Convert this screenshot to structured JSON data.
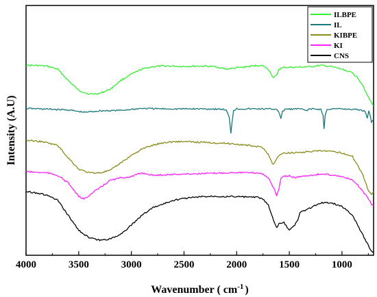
{
  "chart_data": {
    "type": "line",
    "title": "",
    "xlabel": "Wavenumber ( cm",
    "xlabel_sup": "-1",
    "xlabel_tail": ")",
    "ylabel": "Intensity (A.U)",
    "xlim": [
      4000,
      700
    ],
    "ylim": [
      0,
      1
    ],
    "x_reversed": true,
    "y_ticks_shown": false,
    "grid": false,
    "legend_position": "top-right",
    "x_ticks": [
      {
        "value": 4000,
        "label": "4000"
      },
      {
        "value": 3500,
        "label": "3500"
      },
      {
        "value": 3000,
        "label": "3000"
      },
      {
        "value": 2500,
        "label": "2500"
      },
      {
        "value": 2000,
        "label": "2000"
      },
      {
        "value": 1500,
        "label": "1500"
      },
      {
        "value": 1000,
        "label": "1000"
      }
    ],
    "series": [
      {
        "name": "ILBPE",
        "color": "#33ee33",
        "points": [
          [
            4000,
            0.76
          ],
          [
            3900,
            0.76
          ],
          [
            3800,
            0.757
          ],
          [
            3700,
            0.745
          ],
          [
            3600,
            0.7
          ],
          [
            3500,
            0.66
          ],
          [
            3400,
            0.645
          ],
          [
            3300,
            0.648
          ],
          [
            3200,
            0.665
          ],
          [
            3100,
            0.7
          ],
          [
            3000,
            0.725
          ],
          [
            2900,
            0.745
          ],
          [
            2800,
            0.755
          ],
          [
            2700,
            0.758
          ],
          [
            2600,
            0.757
          ],
          [
            2500,
            0.756
          ],
          [
            2400,
            0.757
          ],
          [
            2300,
            0.757
          ],
          [
            2200,
            0.755
          ],
          [
            2100,
            0.745
          ],
          [
            2000,
            0.75
          ],
          [
            1900,
            0.755
          ],
          [
            1800,
            0.76
          ],
          [
            1750,
            0.758
          ],
          [
            1700,
            0.745
          ],
          [
            1650,
            0.71
          ],
          [
            1620,
            0.72
          ],
          [
            1600,
            0.745
          ],
          [
            1550,
            0.752
          ],
          [
            1500,
            0.752
          ],
          [
            1400,
            0.753
          ],
          [
            1300,
            0.755
          ],
          [
            1200,
            0.76
          ],
          [
            1100,
            0.755
          ],
          [
            1000,
            0.745
          ],
          [
            900,
            0.73
          ],
          [
            850,
            0.71
          ],
          [
            800,
            0.68
          ],
          [
            760,
            0.64
          ],
          [
            720,
            0.61
          ],
          [
            700,
            0.6
          ]
        ]
      },
      {
        "name": "IL",
        "color": "#17777a",
        "points": [
          [
            4000,
            0.588
          ],
          [
            3800,
            0.585
          ],
          [
            3600,
            0.582
          ],
          [
            3450,
            0.572
          ],
          [
            3300,
            0.578
          ],
          [
            3100,
            0.58
          ],
          [
            2900,
            0.588
          ],
          [
            2700,
            0.586
          ],
          [
            2500,
            0.586
          ],
          [
            2300,
            0.586
          ],
          [
            2150,
            0.585
          ],
          [
            2100,
            0.582
          ],
          [
            2070,
            0.55
          ],
          [
            2055,
            0.49
          ],
          [
            2045,
            0.53
          ],
          [
            2030,
            0.58
          ],
          [
            2000,
            0.586
          ],
          [
            1800,
            0.586
          ],
          [
            1620,
            0.585
          ],
          [
            1600,
            0.575
          ],
          [
            1580,
            0.545
          ],
          [
            1565,
            0.575
          ],
          [
            1540,
            0.585
          ],
          [
            1500,
            0.585
          ],
          [
            1400,
            0.586
          ],
          [
            1340,
            0.58
          ],
          [
            1300,
            0.586
          ],
          [
            1200,
            0.584
          ],
          [
            1180,
            0.56
          ],
          [
            1170,
            0.505
          ],
          [
            1160,
            0.56
          ],
          [
            1140,
            0.585
          ],
          [
            1000,
            0.586
          ],
          [
            850,
            0.583
          ],
          [
            780,
            0.577
          ],
          [
            760,
            0.55
          ],
          [
            745,
            0.58
          ],
          [
            720,
            0.535
          ],
          [
            700,
            0.545
          ]
        ]
      },
      {
        "name": "KIBPE",
        "color": "#8a8a18",
        "points": [
          [
            4000,
            0.46
          ],
          [
            3850,
            0.455
          ],
          [
            3700,
            0.44
          ],
          [
            3600,
            0.39
          ],
          [
            3500,
            0.345
          ],
          [
            3400,
            0.33
          ],
          [
            3300,
            0.33
          ],
          [
            3200,
            0.34
          ],
          [
            3100,
            0.37
          ],
          [
            3000,
            0.4
          ],
          [
            2900,
            0.425
          ],
          [
            2800,
            0.44
          ],
          [
            2700,
            0.45
          ],
          [
            2600,
            0.455
          ],
          [
            2500,
            0.455
          ],
          [
            2400,
            0.453
          ],
          [
            2300,
            0.452
          ],
          [
            2200,
            0.45
          ],
          [
            2100,
            0.448
          ],
          [
            2000,
            0.445
          ],
          [
            1900,
            0.44
          ],
          [
            1800,
            0.435
          ],
          [
            1750,
            0.43
          ],
          [
            1700,
            0.405
          ],
          [
            1660,
            0.365
          ],
          [
            1640,
            0.37
          ],
          [
            1600,
            0.4
          ],
          [
            1550,
            0.408
          ],
          [
            1500,
            0.41
          ],
          [
            1400,
            0.412
          ],
          [
            1300,
            0.415
          ],
          [
            1200,
            0.418
          ],
          [
            1100,
            0.415
          ],
          [
            1000,
            0.41
          ],
          [
            900,
            0.395
          ],
          [
            850,
            0.36
          ],
          [
            800,
            0.32
          ],
          [
            750,
            0.26
          ],
          [
            720,
            0.245
          ],
          [
            700,
            0.255
          ]
        ]
      },
      {
        "name": "KI",
        "color": "#ff22ff",
        "points": [
          [
            4000,
            0.335
          ],
          [
            3900,
            0.332
          ],
          [
            3800,
            0.33
          ],
          [
            3700,
            0.32
          ],
          [
            3600,
            0.29
          ],
          [
            3500,
            0.235
          ],
          [
            3450,
            0.225
          ],
          [
            3400,
            0.24
          ],
          [
            3300,
            0.27
          ],
          [
            3200,
            0.3
          ],
          [
            3100,
            0.31
          ],
          [
            3000,
            0.315
          ],
          [
            2900,
            0.33
          ],
          [
            2800,
            0.32
          ],
          [
            2700,
            0.322
          ],
          [
            2500,
            0.325
          ],
          [
            2300,
            0.327
          ],
          [
            2100,
            0.33
          ],
          [
            2000,
            0.332
          ],
          [
            1900,
            0.33
          ],
          [
            1800,
            0.33
          ],
          [
            1750,
            0.325
          ],
          [
            1700,
            0.31
          ],
          [
            1650,
            0.27
          ],
          [
            1620,
            0.24
          ],
          [
            1600,
            0.26
          ],
          [
            1580,
            0.31
          ],
          [
            1550,
            0.315
          ],
          [
            1500,
            0.318
          ],
          [
            1450,
            0.31
          ],
          [
            1400,
            0.315
          ],
          [
            1300,
            0.32
          ],
          [
            1200,
            0.325
          ],
          [
            1100,
            0.322
          ],
          [
            1000,
            0.315
          ],
          [
            900,
            0.3
          ],
          [
            850,
            0.28
          ],
          [
            800,
            0.255
          ],
          [
            750,
            0.225
          ],
          [
            720,
            0.205
          ],
          [
            700,
            0.2
          ]
        ]
      },
      {
        "name": "CNS",
        "color": "#000000",
        "points": [
          [
            4000,
            0.255
          ],
          [
            3900,
            0.25
          ],
          [
            3800,
            0.24
          ],
          [
            3700,
            0.22
          ],
          [
            3600,
            0.16
          ],
          [
            3500,
            0.1
          ],
          [
            3400,
            0.07
          ],
          [
            3300,
            0.06
          ],
          [
            3200,
            0.065
          ],
          [
            3100,
            0.085
          ],
          [
            3000,
            0.12
          ],
          [
            2900,
            0.16
          ],
          [
            2800,
            0.19
          ],
          [
            2700,
            0.205
          ],
          [
            2600,
            0.22
          ],
          [
            2500,
            0.228
          ],
          [
            2400,
            0.232
          ],
          [
            2300,
            0.235
          ],
          [
            2200,
            0.237
          ],
          [
            2100,
            0.235
          ],
          [
            2000,
            0.235
          ],
          [
            1900,
            0.233
          ],
          [
            1800,
            0.232
          ],
          [
            1750,
            0.225
          ],
          [
            1700,
            0.2
          ],
          [
            1650,
            0.14
          ],
          [
            1620,
            0.11
          ],
          [
            1600,
            0.125
          ],
          [
            1550,
            0.13
          ],
          [
            1500,
            0.1
          ],
          [
            1460,
            0.115
          ],
          [
            1420,
            0.14
          ],
          [
            1400,
            0.17
          ],
          [
            1350,
            0.18
          ],
          [
            1300,
            0.19
          ],
          [
            1200,
            0.21
          ],
          [
            1100,
            0.21
          ],
          [
            1000,
            0.195
          ],
          [
            950,
            0.18
          ],
          [
            900,
            0.16
          ],
          [
            850,
            0.12
          ],
          [
            800,
            0.08
          ],
          [
            750,
            0.04
          ],
          [
            720,
            0.015
          ],
          [
            700,
            0.01
          ]
        ]
      }
    ]
  }
}
